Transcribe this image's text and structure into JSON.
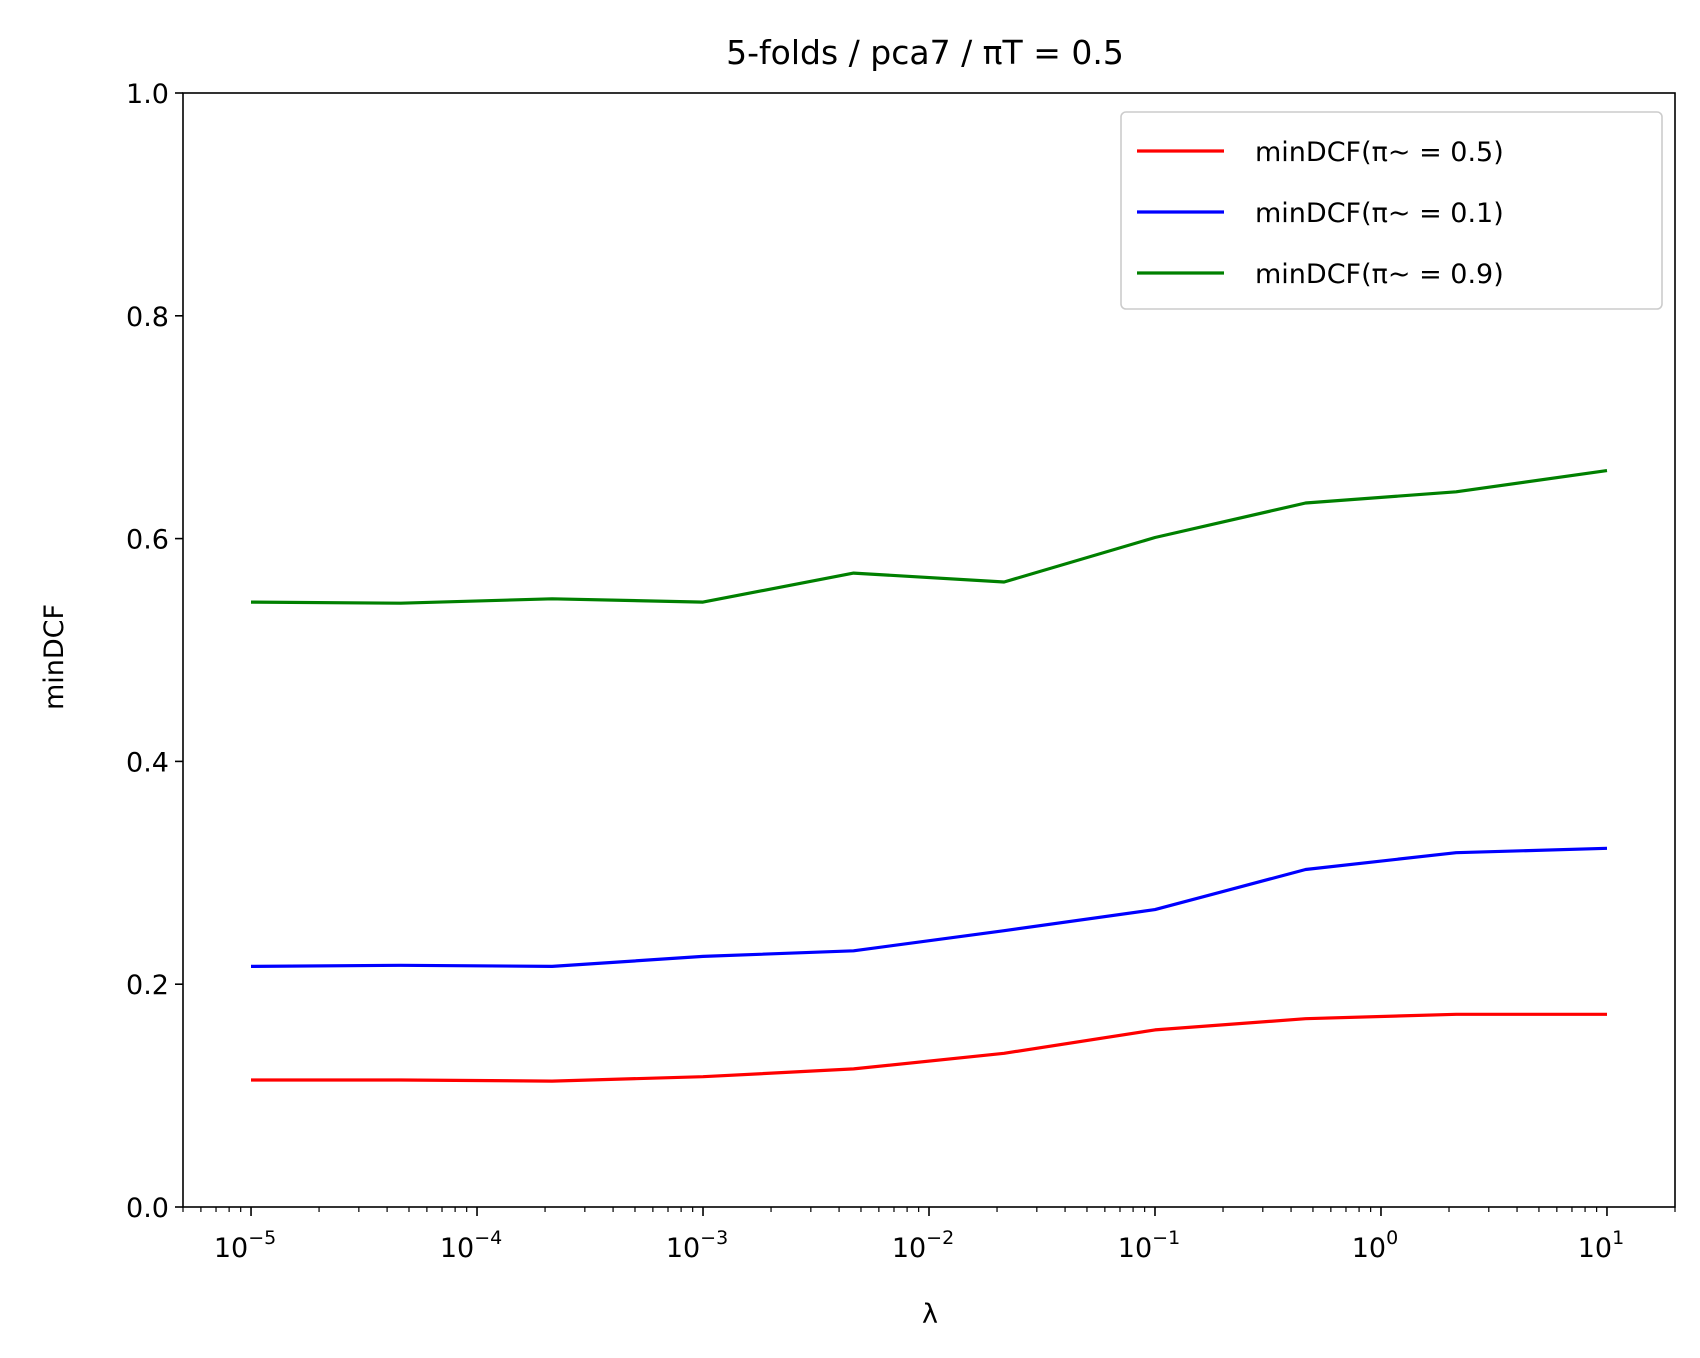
{
  "chart_data": {
    "type": "line",
    "title": "5-folds / pca7 / πT = 0.5",
    "xlabel": "λ",
    "ylabel": "minDCF",
    "xscale": "log",
    "xlim": [
      5e-06,
      20
    ],
    "ylim": [
      0.0,
      1.0
    ],
    "yticks": [
      "0.0",
      "0.2",
      "0.4",
      "0.6",
      "0.8",
      "1.0"
    ],
    "xticks": [
      {
        "base": "10",
        "exp": "−5"
      },
      {
        "base": "10",
        "exp": "−4"
      },
      {
        "base": "10",
        "exp": "−3"
      },
      {
        "base": "10",
        "exp": "−2"
      },
      {
        "base": "10",
        "exp": "−1"
      },
      {
        "base": "10",
        "exp": "0"
      },
      {
        "base": "10",
        "exp": "1"
      }
    ],
    "x": [
      1e-05,
      4.6e-05,
      0.000215,
      0.001,
      0.00464,
      0.0215,
      0.1,
      0.464,
      2.15,
      10
    ],
    "series": [
      {
        "name": "minDCF(π~ = 0.5)",
        "color": "#ff0000",
        "values": [
          0.114,
          0.114,
          0.113,
          0.117,
          0.124,
          0.138,
          0.159,
          0.169,
          0.173,
          0.173
        ]
      },
      {
        "name": "minDCF(π~ = 0.1)",
        "color": "#0000ff",
        "values": [
          0.216,
          0.217,
          0.216,
          0.225,
          0.23,
          0.248,
          0.267,
          0.303,
          0.318,
          0.322
        ]
      },
      {
        "name": "minDCF(π~ = 0.9)",
        "color": "#008000",
        "values": [
          0.543,
          0.542,
          0.546,
          0.543,
          0.569,
          0.561,
          0.601,
          0.632,
          0.642,
          0.661
        ]
      }
    ],
    "grid": false,
    "legend_position": "top-right"
  }
}
